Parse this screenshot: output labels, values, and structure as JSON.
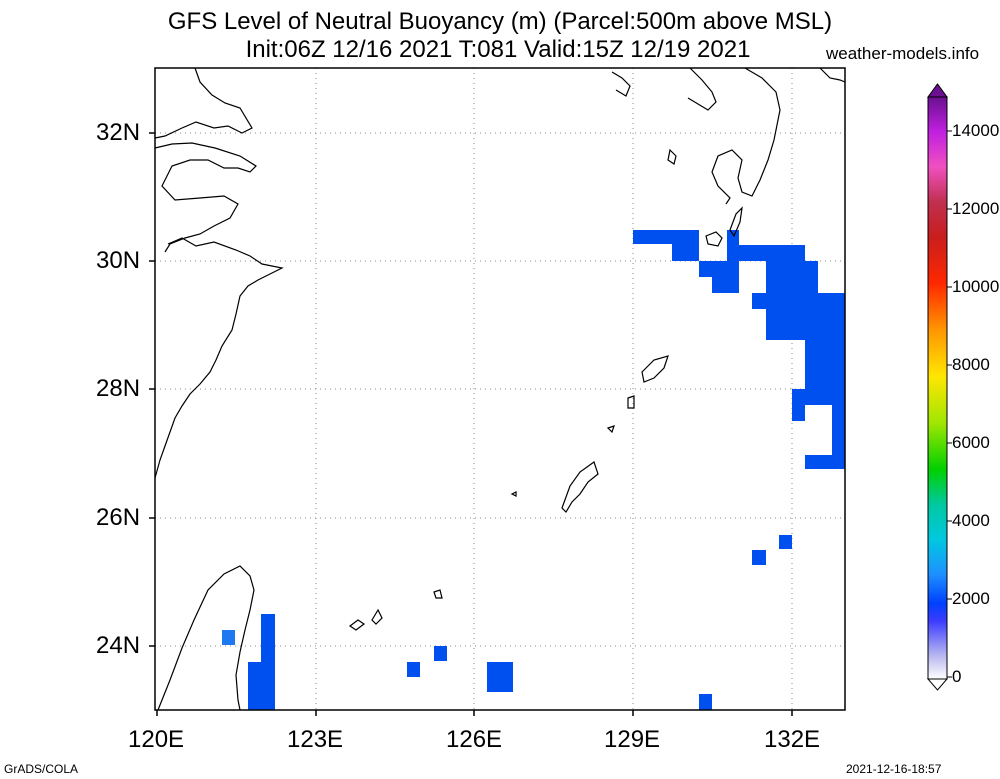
{
  "title_line1": "GFS Level of Neutral Buoyancy (m) (Parcel:500m above MSL)",
  "title_line2": "Init:06Z 12/16 2021 T:081 Valid:15Z 12/19 2021",
  "site": "weather-models.info",
  "footer_left": "GrADS/COLA",
  "footer_right": "2021-12-16-18:57",
  "map": {
    "lon_range": [
      120,
      133
    ],
    "lat_range": [
      23,
      33
    ],
    "lon_ticks": [
      "120E",
      "123E",
      "126E",
      "129E",
      "132E"
    ],
    "lat_ticks": [
      "32N",
      "30N",
      "28N",
      "26N",
      "24N"
    ],
    "gridlines": true,
    "fill_color_main": "#0050f0",
    "fill_color_light": "#1e78f0",
    "coastline_color": "#000000"
  },
  "colorbar": {
    "labels": [
      "14000",
      "12000",
      "10000",
      "8000",
      "6000",
      "4000",
      "2000",
      "0"
    ],
    "min": 0,
    "max": 15000,
    "orientation": "vertical",
    "placement": "right"
  }
}
